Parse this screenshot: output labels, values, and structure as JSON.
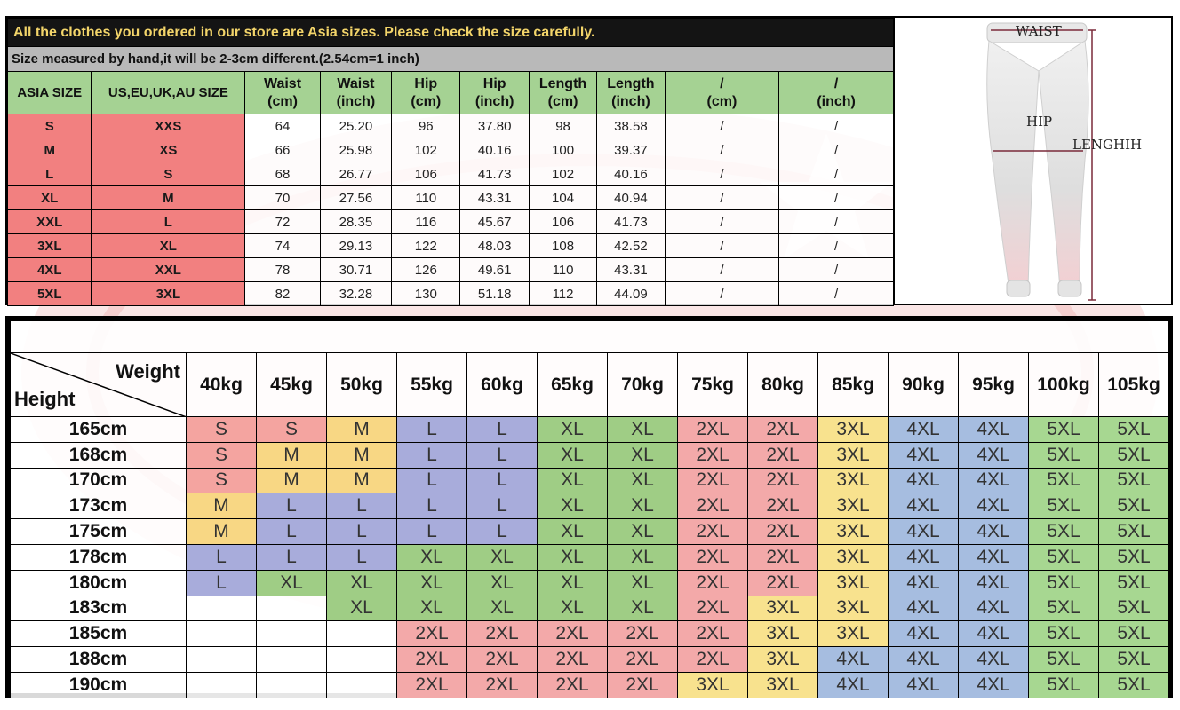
{
  "colors": {
    "banner_bg": "#141414",
    "banner_text": "#f3d56a",
    "subbanner_bg": "#b9b9b9",
    "header_green": "#a5d293",
    "size_red": "#f28080",
    "cell_colors": {
      "S": "#f4a4a0",
      "M": "#f8d784",
      "L": "#a8acdb",
      "XL": "#9fcd85",
      "2XL": "#f3a9a9",
      "3XL": "#f8e28e",
      "4XL": "#a6bde0",
      "5XL": "#a7d791"
    }
  },
  "size_chart": {
    "banner": "All the clothes you ordered in our store are Asia sizes. Please check the size carefully.",
    "note": "Size measured by hand,it will be 2-3cm different.(2.54cm=1 inch)",
    "headers": [
      "ASIA SIZE",
      "US,EU,UK,AU SIZE",
      "Waist\n(cm)",
      "Waist\n(inch)",
      "Hip\n(cm)",
      "Hip\n(inch)",
      "Length\n(cm)",
      "Length\n(inch)",
      "/\n(cm)",
      "/\n(inch)"
    ],
    "rows": [
      [
        "S",
        "XXS",
        "64",
        "25.20",
        "96",
        "37.80",
        "98",
        "38.58",
        "/",
        "/"
      ],
      [
        "M",
        "XS",
        "66",
        "25.98",
        "102",
        "40.16",
        "100",
        "39.37",
        "/",
        "/"
      ],
      [
        "L",
        "S",
        "68",
        "26.77",
        "106",
        "41.73",
        "102",
        "40.16",
        "/",
        "/"
      ],
      [
        "XL",
        "M",
        "70",
        "27.56",
        "110",
        "43.31",
        "104",
        "40.94",
        "/",
        "/"
      ],
      [
        "XXL",
        "L",
        "72",
        "28.35",
        "116",
        "45.67",
        "106",
        "41.73",
        "/",
        "/"
      ],
      [
        "3XL",
        "XL",
        "74",
        "29.13",
        "122",
        "48.03",
        "108",
        "42.52",
        "/",
        "/"
      ],
      [
        "4XL",
        "XXL",
        "78",
        "30.71",
        "126",
        "49.61",
        "110",
        "43.31",
        "/",
        "/"
      ],
      [
        "5XL",
        "3XL",
        "82",
        "32.28",
        "130",
        "51.18",
        "112",
        "44.09",
        "/",
        "/"
      ]
    ]
  },
  "pants_diagram": {
    "waist_label": "WAIST",
    "hip_label": "HIP",
    "length_label": "LENGHIH"
  },
  "height_weight_chart": {
    "corner_weight": "Weight",
    "corner_height": "Height",
    "weights": [
      "40kg",
      "45kg",
      "50kg",
      "55kg",
      "60kg",
      "65kg",
      "70kg",
      "75kg",
      "80kg",
      "85kg",
      "90kg",
      "95kg",
      "100kg",
      "105kg"
    ],
    "rows": [
      {
        "height": "165cm",
        "sizes": [
          "S",
          "S",
          "M",
          "L",
          "L",
          "XL",
          "XL",
          "2XL",
          "2XL",
          "3XL",
          "4XL",
          "4XL",
          "5XL",
          "5XL"
        ]
      },
      {
        "height": "168cm",
        "sizes": [
          "S",
          "M",
          "M",
          "L",
          "L",
          "XL",
          "XL",
          "2XL",
          "2XL",
          "3XL",
          "4XL",
          "4XL",
          "5XL",
          "5XL"
        ]
      },
      {
        "height": "170cm",
        "sizes": [
          "S",
          "M",
          "M",
          "L",
          "L",
          "XL",
          "XL",
          "2XL",
          "2XL",
          "3XL",
          "4XL",
          "4XL",
          "5XL",
          "5XL"
        ]
      },
      {
        "height": "173cm",
        "sizes": [
          "M",
          "L",
          "L",
          "L",
          "L",
          "XL",
          "XL",
          "2XL",
          "2XL",
          "3XL",
          "4XL",
          "4XL",
          "5XL",
          "5XL"
        ]
      },
      {
        "height": "175cm",
        "sizes": [
          "M",
          "L",
          "L",
          "L",
          "L",
          "XL",
          "XL",
          "2XL",
          "2XL",
          "3XL",
          "4XL",
          "4XL",
          "5XL",
          "5XL"
        ]
      },
      {
        "height": "178cm",
        "sizes": [
          "L",
          "L",
          "L",
          "XL",
          "XL",
          "XL",
          "XL",
          "2XL",
          "2XL",
          "3XL",
          "4XL",
          "4XL",
          "5XL",
          "5XL"
        ]
      },
      {
        "height": "180cm",
        "sizes": [
          "L",
          "XL",
          "XL",
          "XL",
          "XL",
          "XL",
          "XL",
          "2XL",
          "2XL",
          "3XL",
          "4XL",
          "4XL",
          "5XL",
          "5XL"
        ]
      },
      {
        "height": "183cm",
        "sizes": [
          "",
          "",
          "XL",
          "XL",
          "XL",
          "XL",
          "XL",
          "2XL",
          "3XL",
          "3XL",
          "4XL",
          "4XL",
          "5XL",
          "5XL"
        ]
      },
      {
        "height": "185cm",
        "sizes": [
          "",
          "",
          "",
          "2XL",
          "2XL",
          "2XL",
          "2XL",
          "2XL",
          "3XL",
          "3XL",
          "4XL",
          "4XL",
          "5XL",
          "5XL"
        ]
      },
      {
        "height": "188cm",
        "sizes": [
          "",
          "",
          "",
          "2XL",
          "2XL",
          "2XL",
          "2XL",
          "2XL",
          "3XL",
          "4XL",
          "4XL",
          "4XL",
          "5XL",
          "5XL"
        ]
      },
      {
        "height": "190cm",
        "sizes": [
          "",
          "",
          "",
          "2XL",
          "2XL",
          "2XL",
          "2XL",
          "3XL",
          "3XL",
          "4XL",
          "4XL",
          "4XL",
          "5XL",
          "5XL"
        ]
      }
    ]
  }
}
